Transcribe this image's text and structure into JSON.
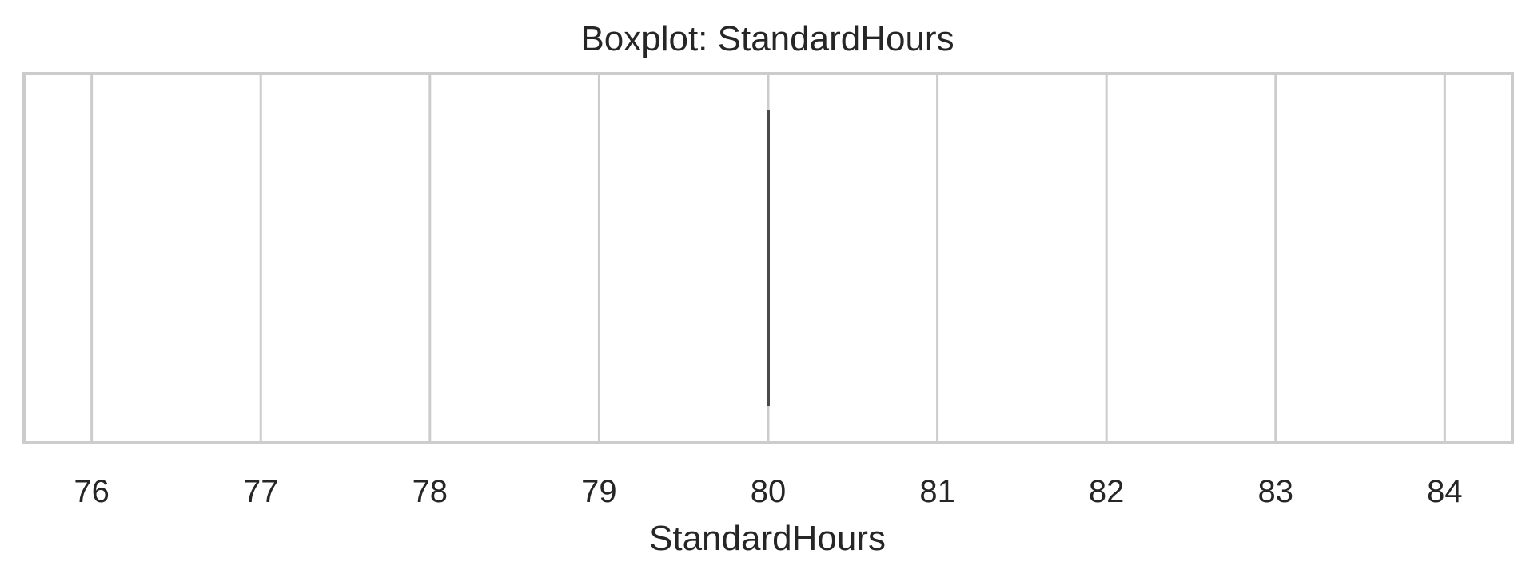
{
  "chart_data": {
    "type": "box",
    "title": "Boxplot: StandardHours",
    "xlabel": "StandardHours",
    "ylabel": "",
    "xlim": [
      75.6,
      84.4
    ],
    "xticks": [
      76,
      77,
      78,
      79,
      80,
      81,
      82,
      83,
      84
    ],
    "tick_labels": [
      "76",
      "77",
      "78",
      "79",
      "80",
      "81",
      "82",
      "83",
      "84"
    ],
    "grid": true,
    "series": [
      {
        "min": 80,
        "q1": 80,
        "median": 80,
        "q3": 80,
        "max": 80,
        "color": "#4a4a4a"
      }
    ]
  },
  "colors": {
    "grid": "#cccccc",
    "frame": "#cccccc",
    "text": "#262626"
  }
}
